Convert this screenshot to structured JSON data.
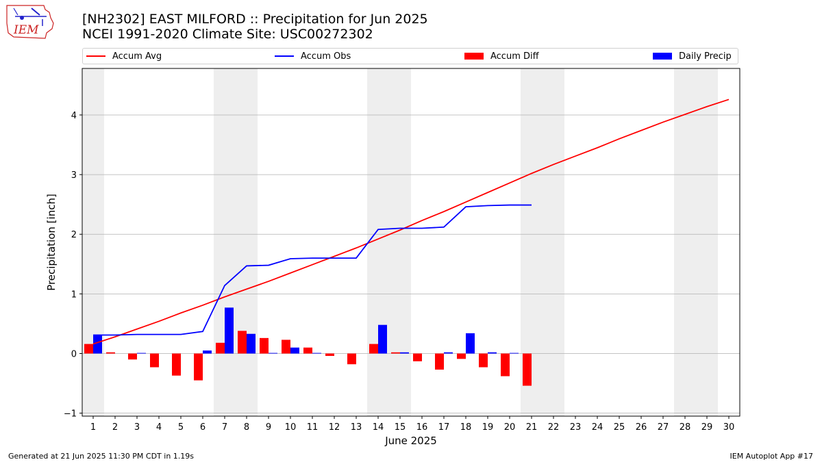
{
  "header": {
    "title_line1": "[NH2302] EAST MILFORD :: Precipitation for Jun 2025",
    "title_line2": "NCEI 1991-2020 Climate Site: USC00272302",
    "logo_text": "IEM"
  },
  "footer": {
    "generated": "Generated at 21 Jun 2025 11:30 PM CDT in 1.19s",
    "app": "IEM Autoplot App #17"
  },
  "colors": {
    "avg": "#ff0000",
    "obs": "#0000ff",
    "diff": "#ff0000",
    "daily": "#0000ff",
    "weekend_band": "#eeeeee",
    "grid": "#b0b0b0"
  },
  "chart_data": {
    "type": "bar",
    "xlabel": "June 2025",
    "ylabel": "Precipitation [inch]",
    "xlim": [
      0.5,
      30.5
    ],
    "ylim": [
      -1.05,
      4.78
    ],
    "yticks": [
      -1,
      0,
      1,
      2,
      3,
      4
    ],
    "xticks": [
      1,
      2,
      3,
      4,
      5,
      6,
      7,
      8,
      9,
      10,
      11,
      12,
      13,
      14,
      15,
      16,
      17,
      18,
      19,
      20,
      21,
      22,
      23,
      24,
      25,
      26,
      27,
      28,
      29,
      30
    ],
    "grid": "horizontal",
    "legend_position": "top",
    "shaded_bands": [
      [
        0.5,
        1.5
      ],
      [
        6.5,
        8.5
      ],
      [
        13.5,
        15.5
      ],
      [
        20.5,
        22.5
      ],
      [
        27.5,
        29.5
      ]
    ],
    "series": [
      {
        "name": "Accum Avg",
        "type": "line",
        "x": [
          1,
          2,
          3,
          4,
          5,
          6,
          7,
          8,
          9,
          10,
          11,
          12,
          13,
          14,
          15,
          16,
          17,
          18,
          19,
          20,
          21,
          22,
          23,
          24,
          25,
          26,
          27,
          28,
          29,
          30
        ],
        "values": [
          0.16,
          0.28,
          0.41,
          0.54,
          0.68,
          0.81,
          0.95,
          1.08,
          1.21,
          1.35,
          1.49,
          1.63,
          1.77,
          1.92,
          2.07,
          2.23,
          2.38,
          2.54,
          2.7,
          2.86,
          3.02,
          3.17,
          3.31,
          3.45,
          3.6,
          3.74,
          3.88,
          4.01,
          4.14,
          4.26
        ]
      },
      {
        "name": "Accum Obs",
        "type": "line",
        "x": [
          1,
          2,
          3,
          4,
          5,
          6,
          7,
          8,
          9,
          10,
          11,
          12,
          13,
          14,
          15,
          16,
          17,
          18,
          19,
          20,
          21
        ],
        "values": [
          0.31,
          0.31,
          0.32,
          0.32,
          0.32,
          0.37,
          1.14,
          1.47,
          1.48,
          1.59,
          1.6,
          1.6,
          1.6,
          2.08,
          2.1,
          2.1,
          2.12,
          2.46,
          2.48,
          2.49,
          2.49
        ]
      },
      {
        "name": "Accum Diff",
        "type": "bar",
        "x": [
          1,
          2,
          3,
          4,
          5,
          6,
          7,
          8,
          9,
          10,
          11,
          12,
          13,
          14,
          15,
          16,
          17,
          18,
          19,
          20,
          21
        ],
        "values": [
          0.16,
          0.02,
          -0.1,
          -0.23,
          -0.37,
          -0.45,
          0.18,
          0.38,
          0.26,
          0.23,
          0.1,
          -0.04,
          -0.18,
          0.16,
          0.02,
          -0.13,
          -0.27,
          -0.09,
          -0.23,
          -0.38,
          -0.54
        ]
      },
      {
        "name": "Daily Precip",
        "type": "bar",
        "x": [
          1,
          2,
          3,
          4,
          5,
          6,
          7,
          8,
          9,
          10,
          11,
          12,
          13,
          14,
          15,
          16,
          17,
          18,
          19,
          20,
          21
        ],
        "values": [
          0.31,
          0.0,
          0.01,
          0.0,
          0.0,
          0.05,
          0.77,
          0.33,
          0.01,
          0.1,
          0.01,
          0.0,
          0.0,
          0.48,
          0.02,
          0.0,
          0.02,
          0.34,
          0.02,
          0.01,
          0.0
        ]
      }
    ]
  }
}
